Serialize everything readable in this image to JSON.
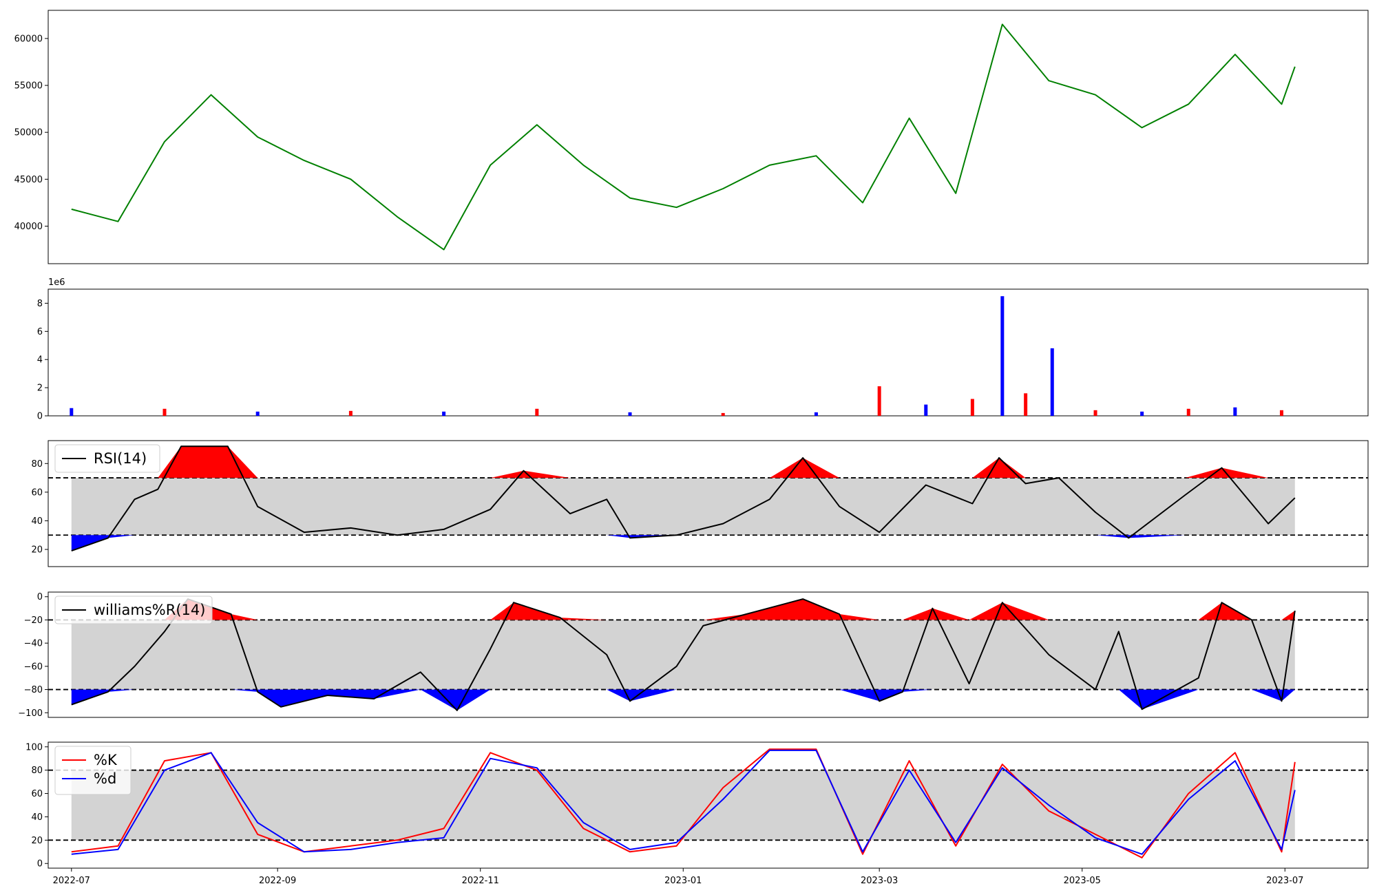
{
  "x_ticks": [
    "2022-07",
    "2022-09",
    "2022-11",
    "2023-01",
    "2023-03",
    "2023-05",
    "2023-07"
  ],
  "colors": {
    "price": "#008000",
    "up": "#ff0000",
    "down": "#0000ff",
    "band": "#d3d3d3",
    "line": "#000000",
    "k": "#ff0000",
    "d": "#0000ff"
  },
  "chart_data": [
    {
      "type": "line",
      "name": "price",
      "x_range": [
        "2022-07-01",
        "2023-07-04"
      ],
      "ylim": [
        36000,
        63000
      ],
      "yticks": [
        "40000",
        "45000",
        "50000",
        "55000",
        "60000"
      ],
      "x": [
        "2022-07-01",
        "2022-07-15",
        "2022-07-29",
        "2022-08-12",
        "2022-08-26",
        "2022-09-09",
        "2022-09-23",
        "2022-10-07",
        "2022-10-21",
        "2022-11-04",
        "2022-11-18",
        "2022-12-02",
        "2022-12-16",
        "2022-12-30",
        "2023-01-13",
        "2023-01-27",
        "2023-02-10",
        "2023-02-24",
        "2023-03-10",
        "2023-03-24",
        "2023-04-07",
        "2023-04-21",
        "2023-05-05",
        "2023-05-19",
        "2023-06-02",
        "2023-06-16",
        "2023-06-30",
        "2023-07-04"
      ],
      "values": [
        41800,
        40500,
        49000,
        54000,
        49500,
        47000,
        45000,
        41000,
        37500,
        46500,
        50800,
        46500,
        43000,
        42000,
        44000,
        46500,
        47500,
        42500,
        51500,
        43500,
        61500,
        55500,
        54000,
        50500,
        53000,
        58300,
        53000,
        57000
      ]
    },
    {
      "type": "bar",
      "name": "volume",
      "offset_label": "1e6",
      "ylim": [
        0,
        9
      ],
      "yticks": [
        "0",
        "2",
        "4",
        "6",
        "8"
      ],
      "x": [
        "2022-07-01",
        "2022-07-29",
        "2022-08-26",
        "2022-09-23",
        "2022-10-21",
        "2022-11-18",
        "2022-12-16",
        "2023-01-13",
        "2023-02-10",
        "2023-03-01",
        "2023-03-15",
        "2023-03-29",
        "2023-04-07",
        "2023-04-14",
        "2023-04-22",
        "2023-05-05",
        "2023-05-19",
        "2023-06-02",
        "2023-06-16",
        "2023-06-30"
      ],
      "values": [
        0.55,
        0.5,
        0.3,
        0.35,
        0.3,
        0.5,
        0.25,
        0.2,
        0.25,
        2.1,
        0.8,
        1.2,
        8.5,
        1.6,
        4.8,
        0.4,
        0.3,
        0.5,
        0.6,
        0.4
      ]
    },
    {
      "type": "line",
      "name": "rsi",
      "legend": "RSI(14)",
      "ylim": [
        8,
        96
      ],
      "yticks": [
        "20",
        "40",
        "60",
        "80"
      ],
      "levels": [
        30,
        70
      ],
      "x": [
        "2022-07-01",
        "2022-07-12",
        "2022-07-20",
        "2022-07-27",
        "2022-08-03",
        "2022-08-17",
        "2022-08-26",
        "2022-09-09",
        "2022-09-23",
        "2022-10-07",
        "2022-10-21",
        "2022-11-04",
        "2022-11-14",
        "2022-11-28",
        "2022-12-09",
        "2022-12-16",
        "2022-12-30",
        "2023-01-13",
        "2023-01-27",
        "2023-02-06",
        "2023-02-17",
        "2023-03-01",
        "2023-03-15",
        "2023-03-29",
        "2023-04-06",
        "2023-04-14",
        "2023-04-24",
        "2023-05-05",
        "2023-05-15",
        "2023-06-01",
        "2023-06-12",
        "2023-06-26",
        "2023-07-04"
      ],
      "values": [
        19,
        28,
        55,
        62,
        92,
        92,
        50,
        32,
        35,
        30,
        34,
        48,
        75,
        45,
        55,
        28,
        30,
        38,
        55,
        84,
        50,
        32,
        65,
        52,
        84,
        66,
        70,
        46,
        28,
        58,
        77,
        38,
        56
      ]
    },
    {
      "type": "line",
      "name": "williams",
      "legend": "williams%R(14)",
      "ylim": [
        -104,
        4
      ],
      "yticks": [
        "0",
        "−20",
        "−40",
        "−60",
        "−80",
        "−100"
      ],
      "levels": [
        -20,
        -80
      ],
      "x": [
        "2022-07-01",
        "2022-07-12",
        "2022-07-20",
        "2022-07-29",
        "2022-08-05",
        "2022-08-18",
        "2022-08-26",
        "2022-09-02",
        "2022-09-16",
        "2022-09-30",
        "2022-10-14",
        "2022-10-25",
        "2022-11-04",
        "2022-11-11",
        "2022-11-25",
        "2022-12-09",
        "2022-12-16",
        "2022-12-30",
        "2023-01-07",
        "2023-01-20",
        "2023-02-06",
        "2023-02-17",
        "2023-03-01",
        "2023-03-08",
        "2023-03-17",
        "2023-03-28",
        "2023-04-07",
        "2023-04-21",
        "2023-05-05",
        "2023-05-12",
        "2023-05-19",
        "2023-06-05",
        "2023-06-12",
        "2023-06-21",
        "2023-06-30",
        "2023-07-04"
      ],
      "values": [
        -93,
        -82,
        -60,
        -30,
        -2,
        -15,
        -82,
        -95,
        -85,
        -88,
        -65,
        -98,
        -45,
        -5,
        -18,
        -50,
        -90,
        -60,
        -25,
        -15,
        -2,
        -15,
        -90,
        -82,
        -10,
        -75,
        -5,
        -50,
        -80,
        -30,
        -97,
        -70,
        -5,
        -20,
        -90,
        -12
      ]
    },
    {
      "type": "line",
      "name": "stochastic",
      "ylim": [
        -4,
        104
      ],
      "yticks": [
        "0",
        "20",
        "40",
        "60",
        "80",
        "100"
      ],
      "levels": [
        20,
        80
      ],
      "x": [
        "2022-07-01",
        "2022-07-15",
        "2022-07-29",
        "2022-08-12",
        "2022-08-26",
        "2022-09-09",
        "2022-09-23",
        "2022-10-07",
        "2022-10-21",
        "2022-11-04",
        "2022-11-18",
        "2022-12-02",
        "2022-12-16",
        "2022-12-30",
        "2023-01-13",
        "2023-01-27",
        "2023-02-10",
        "2023-02-24",
        "2023-03-10",
        "2023-03-24",
        "2023-04-07",
        "2023-04-21",
        "2023-05-05",
        "2023-05-19",
        "2023-06-02",
        "2023-06-16",
        "2023-06-30",
        "2023-07-04"
      ],
      "series": [
        {
          "name": "%K",
          "values": [
            10,
            15,
            88,
            95,
            25,
            10,
            15,
            20,
            30,
            95,
            80,
            30,
            10,
            15,
            65,
            98,
            98,
            8,
            88,
            15,
            85,
            45,
            25,
            5,
            60,
            95,
            10,
            87
          ]
        },
        {
          "name": "%d",
          "values": [
            8,
            12,
            80,
            95,
            35,
            10,
            12,
            18,
            22,
            90,
            82,
            35,
            12,
            18,
            55,
            97,
            97,
            10,
            80,
            18,
            82,
            50,
            22,
            8,
            55,
            88,
            12,
            63
          ]
        }
      ]
    }
  ]
}
